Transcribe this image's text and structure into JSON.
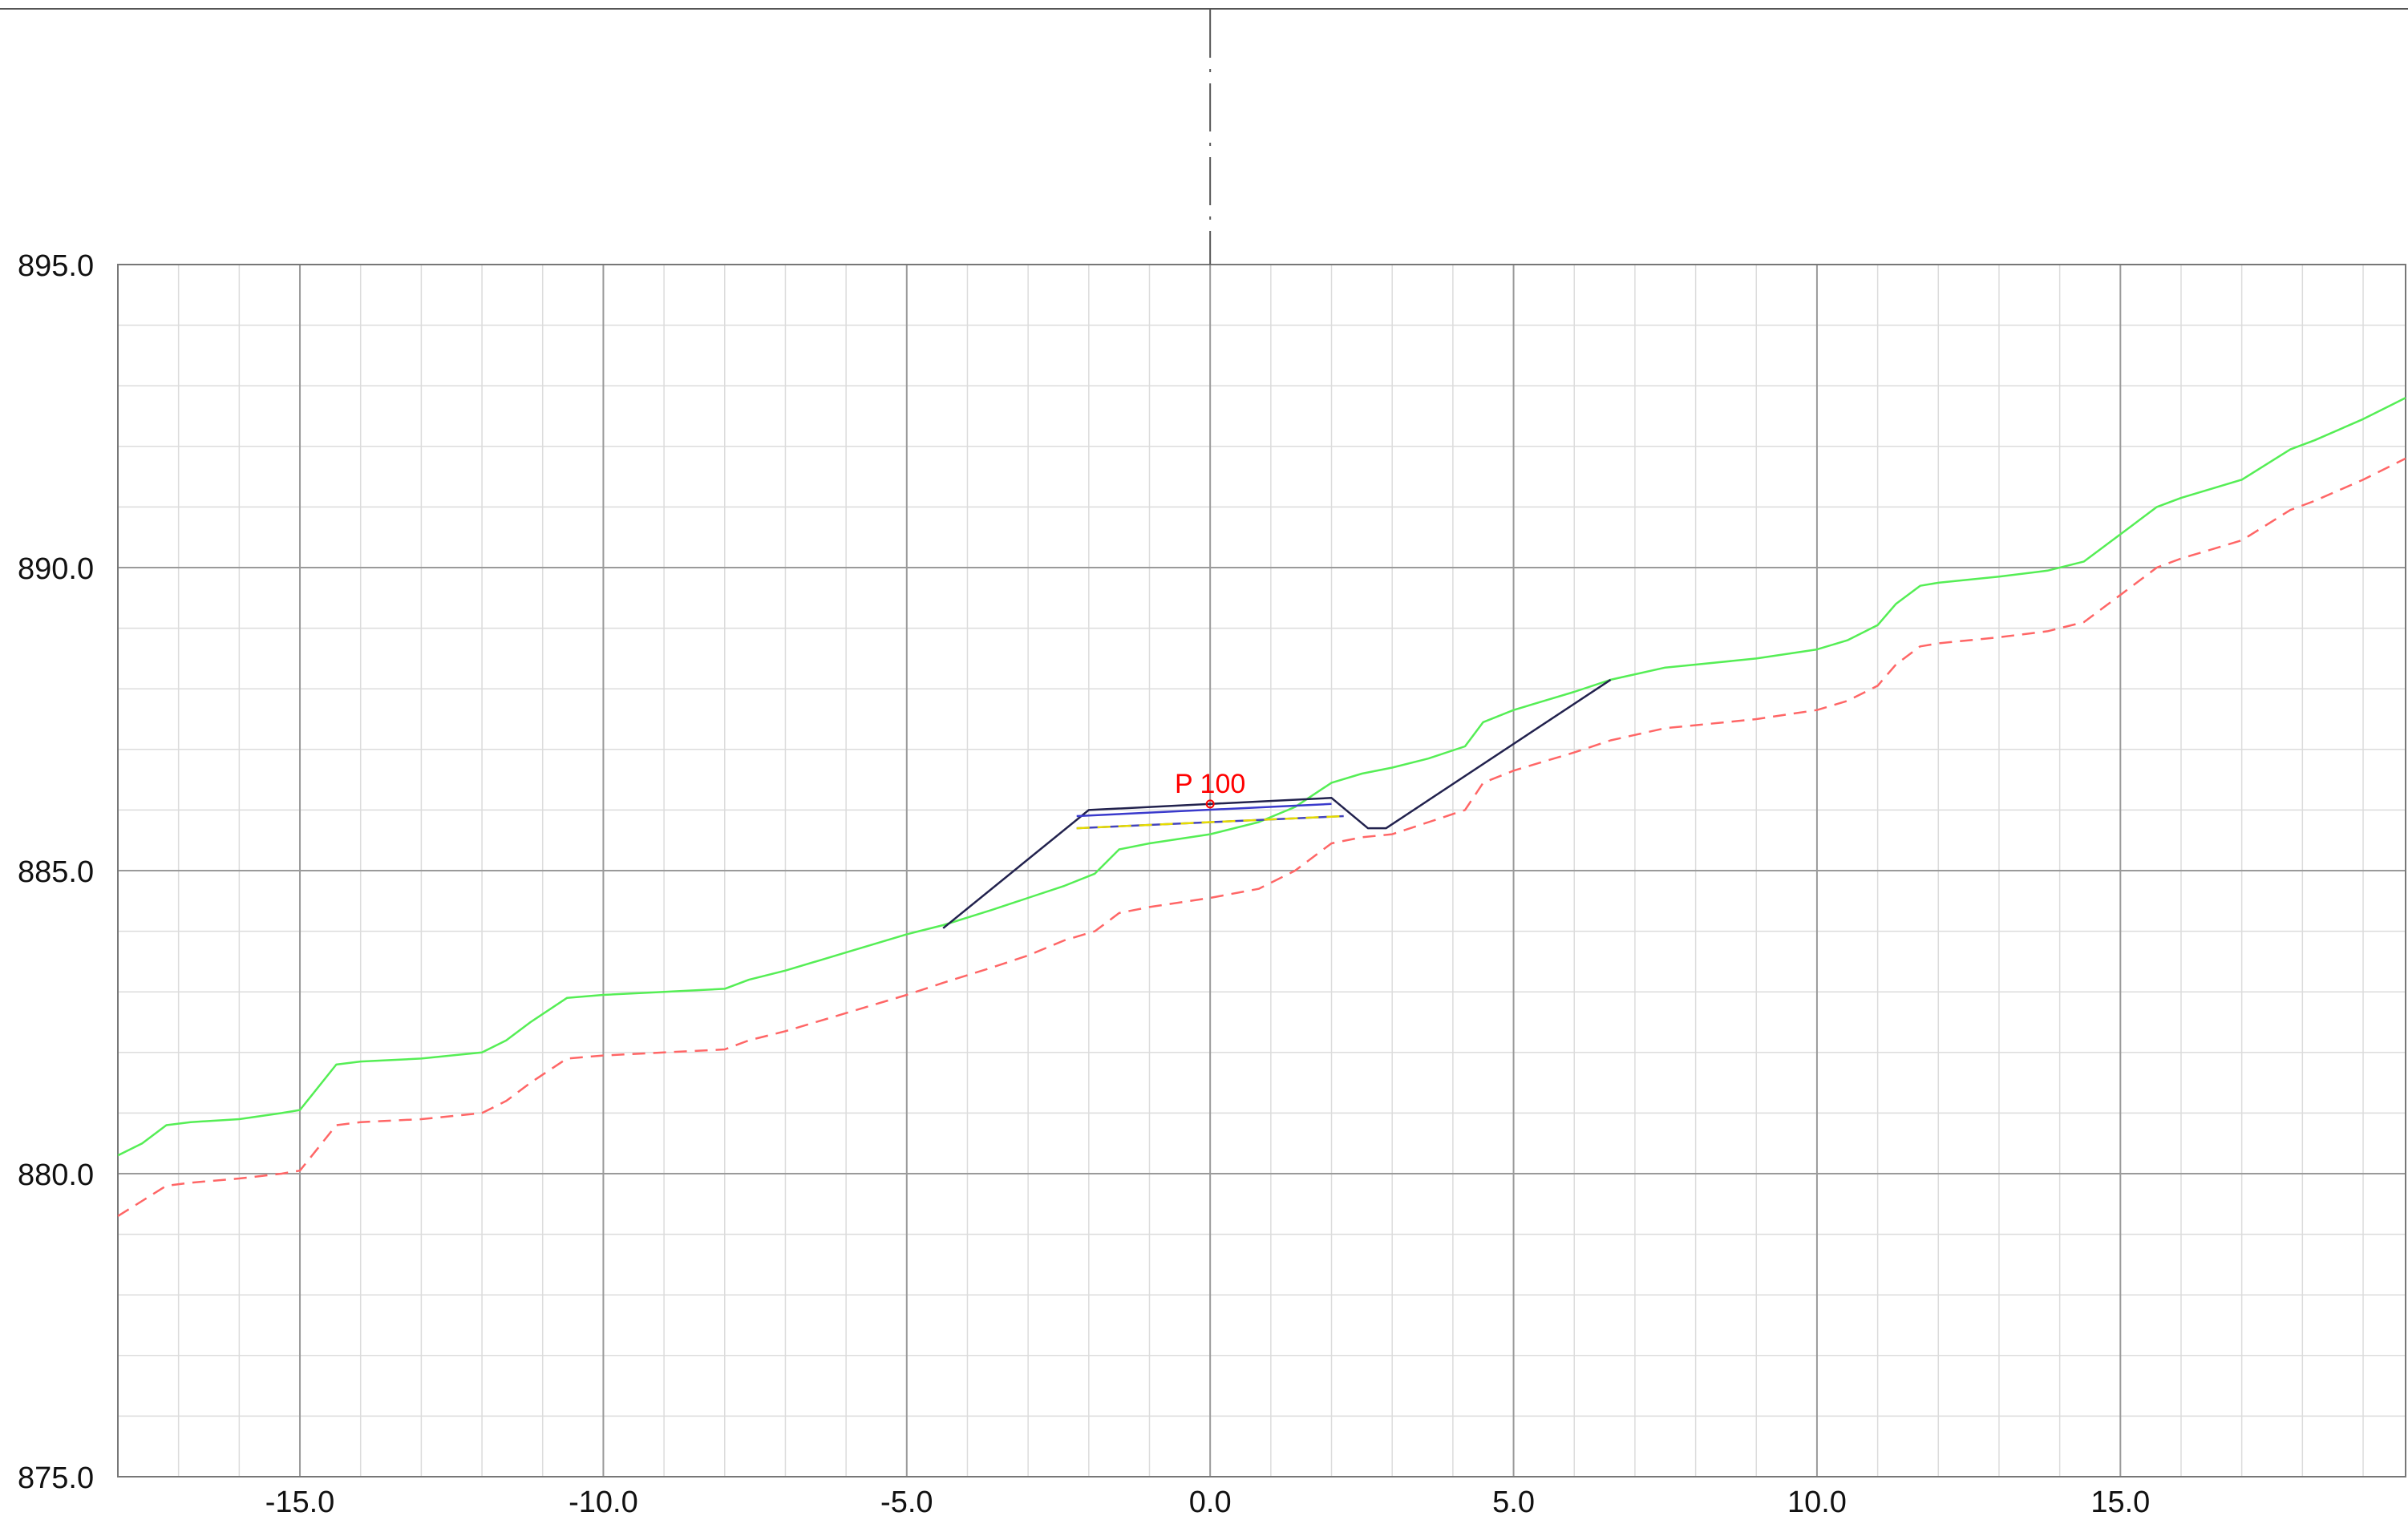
{
  "chart_data": {
    "type": "line",
    "title": "",
    "xlabel": "",
    "ylabel": "",
    "xlim": [
      -18.0,
      19.7
    ],
    "ylim": [
      875.0,
      895.0
    ],
    "grid": true,
    "x_ticks": [
      {
        "value": -15.0,
        "label": "-15.0"
      },
      {
        "value": -10.0,
        "label": "-10.0"
      },
      {
        "value": -5.0,
        "label": "-5.0"
      },
      {
        "value": 0.0,
        "label": "0.0"
      },
      {
        "value": 5.0,
        "label": "5.0"
      },
      {
        "value": 10.0,
        "label": "10.0"
      },
      {
        "value": 15.0,
        "label": "15.0"
      }
    ],
    "y_ticks": [
      {
        "value": 875.0,
        "label": "875.0"
      },
      {
        "value": 880.0,
        "label": "880.0"
      },
      {
        "value": 885.0,
        "label": "885.0"
      },
      {
        "value": 890.0,
        "label": "890.0"
      },
      {
        "value": 895.0,
        "label": "895.0"
      }
    ],
    "minor_x_step": 1.0,
    "minor_y_step": 1.0,
    "centerline_x": 0.0,
    "annotations": [
      {
        "text": "P 100",
        "x": 0.0,
        "y": 886.1,
        "color": "#ff0000"
      }
    ],
    "series": [
      {
        "id": "terrain",
        "color": "#55ee55",
        "style": "solid",
        "points": [
          [
            -18.0,
            880.3
          ],
          [
            -17.6,
            880.5
          ],
          [
            -17.2,
            880.8
          ],
          [
            -16.8,
            880.85
          ],
          [
            -16.0,
            880.9
          ],
          [
            -15.3,
            881.0
          ],
          [
            -15.0,
            881.05
          ],
          [
            -14.8,
            881.3
          ],
          [
            -14.4,
            881.8
          ],
          [
            -14.0,
            881.85
          ],
          [
            -13.0,
            881.9
          ],
          [
            -12.0,
            882.0
          ],
          [
            -11.6,
            882.2
          ],
          [
            -11.2,
            882.5
          ],
          [
            -10.6,
            882.9
          ],
          [
            -10.0,
            882.95
          ],
          [
            -9.0,
            883.0
          ],
          [
            -8.0,
            883.05
          ],
          [
            -7.6,
            883.2
          ],
          [
            -7.0,
            883.35
          ],
          [
            -6.0,
            883.65
          ],
          [
            -5.0,
            883.95
          ],
          [
            -4.4,
            884.1
          ],
          [
            -3.6,
            884.35
          ],
          [
            -3.0,
            884.55
          ],
          [
            -2.4,
            884.75
          ],
          [
            -1.9,
            884.95
          ],
          [
            -1.5,
            885.35
          ],
          [
            -1.0,
            885.45
          ],
          [
            0.0,
            885.6
          ],
          [
            0.8,
            885.8
          ],
          [
            1.4,
            886.05
          ],
          [
            2.0,
            886.45
          ],
          [
            2.5,
            886.6
          ],
          [
            3.0,
            886.7
          ],
          [
            3.6,
            886.85
          ],
          [
            4.2,
            887.05
          ],
          [
            4.5,
            887.45
          ],
          [
            5.0,
            887.65
          ],
          [
            5.5,
            887.8
          ],
          [
            6.0,
            887.95
          ],
          [
            6.6,
            888.15
          ],
          [
            7.5,
            888.35
          ],
          [
            8.0,
            888.4
          ],
          [
            9.0,
            888.5
          ],
          [
            10.0,
            888.65
          ],
          [
            10.5,
            888.8
          ],
          [
            11.0,
            889.05
          ],
          [
            11.3,
            889.4
          ],
          [
            11.7,
            889.7
          ],
          [
            12.0,
            889.75
          ],
          [
            13.0,
            889.85
          ],
          [
            13.8,
            889.95
          ],
          [
            14.4,
            890.1
          ],
          [
            14.8,
            890.4
          ],
          [
            15.2,
            890.7
          ],
          [
            15.6,
            891.0
          ],
          [
            16.0,
            891.15
          ],
          [
            17.0,
            891.45
          ],
          [
            17.8,
            891.95
          ],
          [
            18.2,
            892.1
          ],
          [
            19.0,
            892.45
          ],
          [
            19.7,
            892.8
          ]
        ]
      },
      {
        "id": "subgrade",
        "color": "#ff6666",
        "style": "dashed",
        "points": [
          [
            -18.0,
            879.3
          ],
          [
            -17.6,
            879.55
          ],
          [
            -17.2,
            879.8
          ],
          [
            -16.8,
            879.85
          ],
          [
            -16.0,
            879.92
          ],
          [
            -15.3,
            880.0
          ],
          [
            -15.0,
            880.05
          ],
          [
            -14.8,
            880.3
          ],
          [
            -14.4,
            880.8
          ],
          [
            -14.0,
            880.85
          ],
          [
            -13.0,
            880.9
          ],
          [
            -12.0,
            881.0
          ],
          [
            -11.6,
            881.2
          ],
          [
            -11.2,
            881.5
          ],
          [
            -10.6,
            881.9
          ],
          [
            -10.0,
            881.95
          ],
          [
            -9.0,
            882.0
          ],
          [
            -8.0,
            882.05
          ],
          [
            -7.6,
            882.2
          ],
          [
            -7.0,
            882.35
          ],
          [
            -6.0,
            882.65
          ],
          [
            -5.0,
            882.95
          ],
          [
            -4.4,
            883.15
          ],
          [
            -3.6,
            883.4
          ],
          [
            -3.0,
            883.6
          ],
          [
            -2.4,
            883.85
          ],
          [
            -1.9,
            884.0
          ],
          [
            -1.5,
            884.3
          ],
          [
            -1.0,
            884.4
          ],
          [
            0.0,
            884.55
          ],
          [
            0.8,
            884.7
          ],
          [
            1.4,
            885.0
          ],
          [
            2.0,
            885.45
          ],
          [
            2.5,
            885.55
          ],
          [
            3.0,
            885.6
          ],
          [
            3.6,
            885.8
          ],
          [
            4.2,
            886.0
          ],
          [
            4.5,
            886.45
          ],
          [
            5.0,
            886.65
          ],
          [
            5.5,
            886.8
          ],
          [
            6.0,
            886.95
          ],
          [
            6.6,
            887.15
          ],
          [
            7.5,
            887.35
          ],
          [
            8.0,
            887.4
          ],
          [
            9.0,
            887.5
          ],
          [
            10.0,
            887.65
          ],
          [
            10.5,
            887.8
          ],
          [
            11.0,
            888.05
          ],
          [
            11.3,
            888.4
          ],
          [
            11.7,
            888.7
          ],
          [
            12.0,
            888.75
          ],
          [
            13.0,
            888.85
          ],
          [
            13.8,
            888.95
          ],
          [
            14.4,
            889.1
          ],
          [
            14.8,
            889.4
          ],
          [
            15.2,
            889.7
          ],
          [
            15.6,
            890.0
          ],
          [
            16.0,
            890.15
          ],
          [
            17.0,
            890.45
          ],
          [
            17.8,
            890.95
          ],
          [
            18.2,
            891.1
          ],
          [
            19.0,
            891.45
          ],
          [
            19.7,
            891.8
          ]
        ]
      },
      {
        "id": "design-outline",
        "color": "#22224e",
        "style": "solid",
        "points": [
          [
            -4.4,
            884.05
          ],
          [
            -2.0,
            886.0
          ],
          [
            2.0,
            886.2
          ],
          [
            2.6,
            885.7
          ],
          [
            2.9,
            885.7
          ],
          [
            6.6,
            888.15
          ]
        ]
      },
      {
        "id": "pavement-layer",
        "color": "#3a3acc",
        "style": "solid",
        "points": [
          [
            -2.2,
            885.9
          ],
          [
            2.0,
            886.1
          ]
        ]
      },
      {
        "id": "base-layer",
        "color": "#4444bb",
        "style": "solid",
        "points": [
          [
            -2.2,
            885.7
          ],
          [
            2.2,
            885.9
          ]
        ]
      },
      {
        "id": "base-layer-accent",
        "color": "#e6dc00",
        "style": "dashed",
        "points": [
          [
            -2.2,
            885.7
          ],
          [
            2.2,
            885.9
          ]
        ]
      }
    ]
  }
}
